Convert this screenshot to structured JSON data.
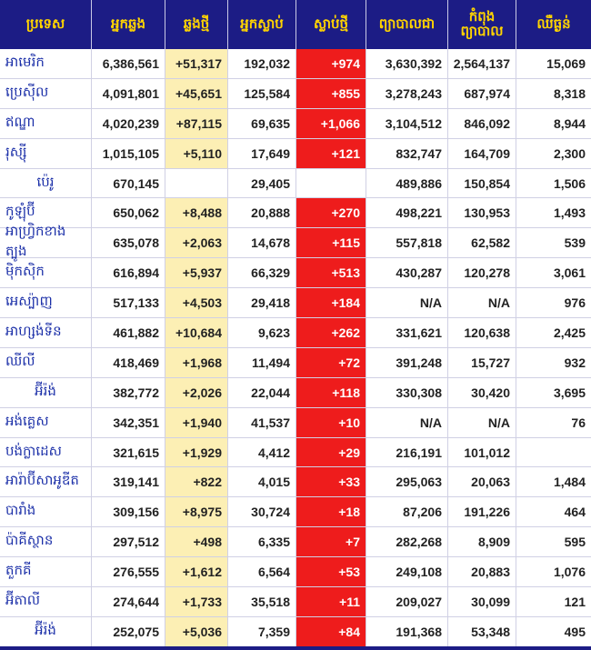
{
  "headers": [
    "ប្រទេស",
    "អ្នកឆ្លង",
    "ឆ្លងថ្មី",
    "អ្នកស្លាប់",
    "ស្លាប់ថ្មី",
    "ព្យាបាលជា",
    "កំពុង\nព្យាបាល",
    "ឈឺធ្ងន់"
  ],
  "rows": [
    [
      "អាមេរិក",
      "6,386,561",
      "+51,317",
      "192,032",
      "+974",
      "3,630,392",
      "2,564,137",
      "15,069"
    ],
    [
      "ប្រេស៊ីល",
      "4,091,801",
      "+45,651",
      "125,584",
      "+855",
      "3,278,243",
      "687,974",
      "8,318"
    ],
    [
      "ឥណ្ឌា",
      "4,020,239",
      "+87,115",
      "69,635",
      "+1,066",
      "3,104,512",
      "846,092",
      "8,944"
    ],
    [
      "រុស្ស៊ី",
      "1,015,105",
      "+5,110",
      "17,649",
      "+121",
      "832,747",
      "164,709",
      "2,300"
    ],
    [
      "ប៉េរូ",
      "670,145",
      "",
      "29,405",
      "",
      "489,886",
      "150,854",
      "1,506"
    ],
    [
      "កូឡុំប៊ី",
      "650,062",
      "+8,488",
      "20,888",
      "+270",
      "498,221",
      "130,953",
      "1,493"
    ],
    [
      "អាហ្វ្រិកខាងត្បូង",
      "635,078",
      "+2,063",
      "14,678",
      "+115",
      "557,818",
      "62,582",
      "539"
    ],
    [
      "ម៉ិកស៊ិក",
      "616,894",
      "+5,937",
      "66,329",
      "+513",
      "430,287",
      "120,278",
      "3,061"
    ],
    [
      "អេស្ប៉ាញ",
      "517,133",
      "+4,503",
      "29,418",
      "+184",
      "N/A",
      "N/A",
      "976"
    ],
    [
      "អាហ្សង់ទីន",
      "461,882",
      "+10,684",
      "9,623",
      "+262",
      "331,621",
      "120,638",
      "2,425"
    ],
    [
      "ឈីលី",
      "418,469",
      "+1,968",
      "11,494",
      "+72",
      "391,248",
      "15,727",
      "932"
    ],
    [
      "អ៊ីរ៉ង់",
      "382,772",
      "+2,026",
      "22,044",
      "+118",
      "330,308",
      "30,420",
      "3,695"
    ],
    [
      "អង់គ្លេស",
      "342,351",
      "+1,940",
      "41,537",
      "+10",
      "N/A",
      "N/A",
      "76"
    ],
    [
      "បង់ក្លាដេស",
      "321,615",
      "+1,929",
      "4,412",
      "+29",
      "216,191",
      "101,012",
      ""
    ],
    [
      "អារ៉ាប៊ីសាអូឌីត",
      "319,141",
      "+822",
      "4,015",
      "+33",
      "295,063",
      "20,063",
      "1,484"
    ],
    [
      "បារាំង",
      "309,156",
      "+8,975",
      "30,724",
      "+18",
      "87,206",
      "191,226",
      "464"
    ],
    [
      "ប៉ាគីស្ថាន",
      "297,512",
      "+498",
      "6,335",
      "+7",
      "282,268",
      "8,909",
      "595"
    ],
    [
      "តួកគី",
      "276,555",
      "+1,612",
      "6,564",
      "+53",
      "249,108",
      "20,883",
      "1,076"
    ],
    [
      "អ៊ីតាលី",
      "274,644",
      "+1,733",
      "35,518",
      "+11",
      "209,027",
      "30,099",
      "121"
    ],
    [
      "អ៊ីរ៉ង់",
      "252,075",
      "+5,036",
      "7,359",
      "+84",
      "191,368",
      "53,348",
      "495"
    ]
  ],
  "colors": {
    "header_bg": "#1c1c85",
    "header_text": "#ffd400",
    "country_text": "#1b2fa8",
    "new_cases_bg": "#fcefb4",
    "new_deaths_bg": "#ee1c1c"
  }
}
